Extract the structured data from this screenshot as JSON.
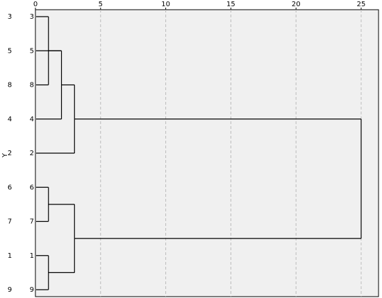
{
  "chart_data": {
    "type": "dendrogram",
    "y_label": "Y",
    "leaves": [
      "3",
      "5",
      "8",
      "4",
      "2",
      "6",
      "7",
      "1",
      "9"
    ],
    "merges": [
      {
        "children": [
          0,
          2
        ],
        "height": 1
      },
      {
        "children": [
          9,
          1,
          3
        ],
        "height": 2
      },
      {
        "children": [
          10,
          4
        ],
        "height": 3
      },
      {
        "children": [
          5,
          6
        ],
        "height": 1
      },
      {
        "children": [
          7,
          8
        ],
        "height": 1
      },
      {
        "children": [
          12,
          13
        ],
        "height": 3
      },
      {
        "children": [
          11,
          14
        ],
        "height": 25
      }
    ],
    "xlim": [
      0,
      26
    ],
    "xticks": [
      0,
      5,
      10,
      15,
      20,
      25
    ],
    "grid": true,
    "color": "#000000"
  }
}
